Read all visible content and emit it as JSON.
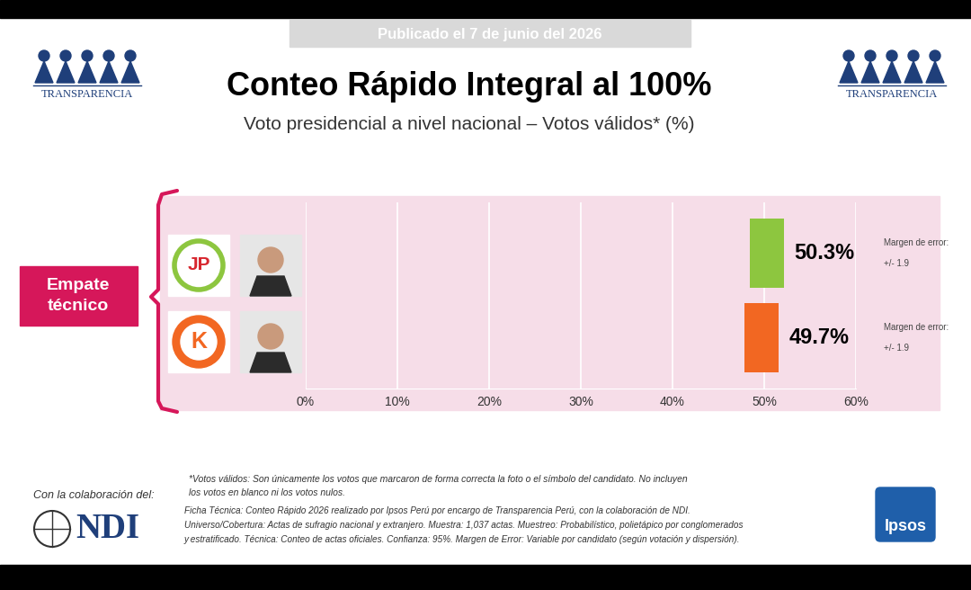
{
  "page": {
    "published": "Publicado el 7 de junio del 2026",
    "organization": "TRANSPARENCIA",
    "badge": "Empate técnico",
    "collaboration": "Con la colaboración del:",
    "collaborator": "NDI",
    "pollster": "Ipsos",
    "footnote": [
      "*Votos válidos: Son únicamente los votos que marcaron de forma correcta la foto o el símbolo del candidato. No incluyen",
      "los votos en blanco ni los votos nulos."
    ],
    "technical_sheet": [
      "Ficha Técnica: Conteo Rápido 2026 realizado por Ipsos Perú por encargo de Transparencia Perú, con la colaboración de NDI.",
      "Universo/Cobertura: Actas de sufragio nacional y extranjero. Muestra: 1,037 actas. Muestreo: Probabilístico, polietápico por conglomerados",
      "y estratificado. Técnica: Conteo de actas oficiales. Confianza: 95%. Margen de Error: Variable por candidato (según votación y dispersión)."
    ]
  },
  "chart_data": {
    "type": "bar",
    "orientation": "horizontal",
    "title": "Conteo Rápido Integral al 100%",
    "subtitle": "Voto presidencial a nivel nacional – Votos válidos* (%)",
    "categories": [
      "JP",
      "K"
    ],
    "values": [
      50.3,
      49.7
    ],
    "value_labels": [
      "50.3%",
      "49.7%"
    ],
    "error": [
      1.9,
      1.9
    ],
    "error_caption": "Margen de error:",
    "error_labels": [
      "+/- 1.9",
      "+/- 1.9"
    ],
    "colors": [
      "#8dc63f",
      "#f26722"
    ],
    "xlim": [
      0,
      60
    ],
    "xticks": [
      {
        "value": 0,
        "label": "0%"
      },
      {
        "value": 10,
        "label": "10%"
      },
      {
        "value": 20,
        "label": "20%"
      },
      {
        "value": 30,
        "label": "30%"
      },
      {
        "value": 40,
        "label": "40%"
      },
      {
        "value": 50,
        "label": "50%"
      },
      {
        "value": 60,
        "label": "60%"
      }
    ],
    "grid": true,
    "data_labels": true
  }
}
